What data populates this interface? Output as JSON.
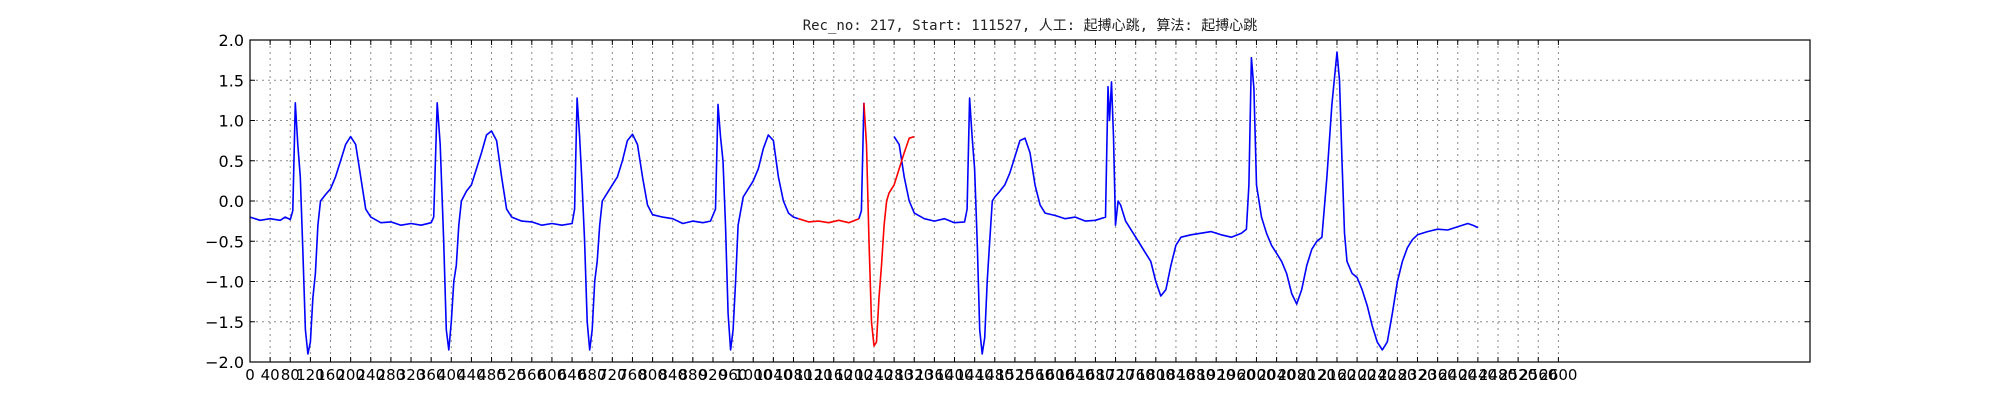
{
  "chart_data": {
    "type": "line",
    "title": "Rec_no: 217, Start: 111527, 人工: 起搏心跳, 算法: 起搏心跳",
    "xlabel": "",
    "ylabel": "",
    "xlim": [
      0,
      3100
    ],
    "ylim": [
      -2.0,
      2.0
    ],
    "grid": true,
    "legend": "none",
    "y_ticks": [
      -2.0,
      -1.5,
      -1.0,
      -0.5,
      0.0,
      0.5,
      1.0,
      1.5,
      2.0
    ],
    "y_tick_labels": [
      "−2.0",
      "−1.5",
      "−1.0",
      "−0.5",
      "0.0",
      "0.5",
      "1.0",
      "1.5",
      "2.0"
    ],
    "x_ticks": [
      0,
      40,
      80,
      120,
      160,
      200,
      240,
      280,
      320,
      360,
      400,
      440,
      480,
      520,
      560,
      600,
      640,
      680,
      720,
      760,
      800,
      840,
      880,
      920,
      960,
      1000,
      1040,
      1080,
      1120,
      1160,
      1200,
      1240,
      1280,
      1320,
      1360,
      1400,
      1440,
      1480,
      1520,
      1560,
      1600,
      1640,
      1680,
      1720,
      1760,
      1800,
      1840,
      1880,
      1920,
      1960,
      2000,
      2040,
      2080,
      2120,
      2160,
      2200,
      2240,
      2280,
      2320,
      2360,
      2400,
      2440,
      2480,
      2520,
      2560,
      2600
    ],
    "x_tick_labels": [
      "0",
      "40",
      "80",
      "120",
      "160",
      "200",
      "240",
      "280",
      "320",
      "360",
      "400",
      "440",
      "480",
      "520",
      "560",
      "600",
      "640",
      "680",
      "720",
      "760",
      "800",
      "840",
      "880",
      "920",
      "960",
      "1000",
      "1040",
      "1080",
      "1120",
      "1160",
      "1200",
      "1240",
      "1280",
      "1320",
      "1360",
      "1400",
      "1440",
      "1480",
      "1520",
      "1560",
      "1600",
      "1640",
      "1680",
      "1720",
      "1760",
      "1800",
      "1840",
      "1880",
      "1920",
      "1960",
      "2000",
      "2040",
      "2080",
      "2120",
      "2160",
      "2200",
      "2240",
      "2280",
      "2320",
      "2360",
      "2400",
      "2440",
      "2480",
      "2520",
      "2560",
      "2600"
    ],
    "series": [
      {
        "color": "#0000ff",
        "segments": [
          [
            [
              0,
              -0.2
            ],
            [
              20,
              -0.24
            ],
            [
              40,
              -0.22
            ],
            [
              60,
              -0.24
            ],
            [
              70,
              -0.2
            ],
            [
              80,
              -0.23
            ],
            [
              85,
              -0.12
            ],
            [
              90,
              1.22
            ],
            [
              95,
              0.7
            ],
            [
              100,
              0.3
            ],
            [
              105,
              -0.6
            ],
            [
              110,
              -1.6
            ],
            [
              115,
              -1.9
            ],
            [
              120,
              -1.75
            ],
            [
              125,
              -1.2
            ],
            [
              130,
              -0.9
            ],
            [
              135,
              -0.3
            ],
            [
              140,
              0.0
            ],
            [
              150,
              0.08
            ],
            [
              160,
              0.15
            ],
            [
              170,
              0.3
            ],
            [
              180,
              0.5
            ],
            [
              190,
              0.7
            ],
            [
              200,
              0.8
            ],
            [
              210,
              0.7
            ],
            [
              220,
              0.3
            ],
            [
              230,
              -0.1
            ],
            [
              240,
              -0.2
            ],
            [
              260,
              -0.27
            ],
            [
              280,
              -0.26
            ],
            [
              300,
              -0.3
            ],
            [
              320,
              -0.28
            ],
            [
              340,
              -0.3
            ],
            [
              360,
              -0.27
            ],
            [
              365,
              -0.2
            ],
            [
              372,
              1.22
            ],
            [
              378,
              0.7
            ],
            [
              385,
              -0.5
            ],
            [
              390,
              -1.6
            ],
            [
              395,
              -1.85
            ],
            [
              400,
              -1.5
            ],
            [
              405,
              -1.0
            ],
            [
              410,
              -0.8
            ],
            [
              415,
              -0.3
            ],
            [
              420,
              0.0
            ],
            [
              430,
              0.12
            ],
            [
              440,
              0.2
            ],
            [
              450,
              0.4
            ],
            [
              460,
              0.6
            ],
            [
              470,
              0.82
            ],
            [
              480,
              0.87
            ],
            [
              490,
              0.75
            ],
            [
              500,
              0.3
            ],
            [
              510,
              -0.1
            ],
            [
              520,
              -0.2
            ],
            [
              540,
              -0.25
            ],
            [
              560,
              -0.26
            ],
            [
              580,
              -0.3
            ],
            [
              600,
              -0.28
            ],
            [
              620,
              -0.3
            ],
            [
              640,
              -0.28
            ],
            [
              645,
              -0.1
            ],
            [
              650,
              1.28
            ],
            [
              655,
              0.8
            ],
            [
              660,
              0.2
            ],
            [
              665,
              -0.5
            ],
            [
              670,
              -1.5
            ],
            [
              675,
              -1.85
            ],
            [
              680,
              -1.6
            ],
            [
              685,
              -1.0
            ],
            [
              690,
              -0.75
            ],
            [
              695,
              -0.3
            ],
            [
              700,
              0.0
            ],
            [
              710,
              0.1
            ],
            [
              720,
              0.2
            ],
            [
              730,
              0.3
            ],
            [
              740,
              0.5
            ],
            [
              750,
              0.75
            ],
            [
              760,
              0.83
            ],
            [
              770,
              0.7
            ],
            [
              780,
              0.3
            ],
            [
              790,
              -0.05
            ],
            [
              800,
              -0.17
            ],
            [
              820,
              -0.2
            ],
            [
              840,
              -0.22
            ],
            [
              860,
              -0.28
            ],
            [
              880,
              -0.25
            ],
            [
              900,
              -0.27
            ],
            [
              915,
              -0.25
            ],
            [
              925,
              -0.1
            ],
            [
              930,
              1.2
            ],
            [
              935,
              0.8
            ],
            [
              940,
              0.5
            ],
            [
              945,
              -0.3
            ],
            [
              950,
              -1.4
            ],
            [
              955,
              -1.85
            ],
            [
              960,
              -1.6
            ],
            [
              965,
              -1.0
            ],
            [
              970,
              -0.3
            ],
            [
              980,
              0.05
            ],
            [
              990,
              0.15
            ],
            [
              1000,
              0.25
            ],
            [
              1010,
              0.4
            ],
            [
              1020,
              0.65
            ],
            [
              1030,
              0.82
            ],
            [
              1040,
              0.75
            ],
            [
              1050,
              0.3
            ],
            [
              1060,
              0.0
            ],
            [
              1070,
              -0.15
            ],
            [
              1080,
              -0.2
            ],
            [
              1090,
              -0.22
            ]
          ],
          [
            [
              1210,
              -0.22
            ],
            [
              1215,
              -0.12
            ],
            [
              1220,
              1.22
            ]
          ],
          [
            [
              1280,
              0.8
            ],
            [
              1290,
              0.7
            ],
            [
              1300,
              0.3
            ],
            [
              1310,
              0.0
            ],
            [
              1320,
              -0.15
            ],
            [
              1340,
              -0.22
            ],
            [
              1360,
              -0.25
            ],
            [
              1380,
              -0.22
            ],
            [
              1400,
              -0.27
            ],
            [
              1420,
              -0.26
            ],
            [
              1425,
              -0.1
            ],
            [
              1430,
              1.28
            ],
            [
              1435,
              0.8
            ],
            [
              1440,
              0.4
            ],
            [
              1445,
              -0.5
            ],
            [
              1450,
              -1.6
            ],
            [
              1455,
              -1.9
            ],
            [
              1460,
              -1.7
            ],
            [
              1465,
              -1.0
            ],
            [
              1470,
              -0.5
            ],
            [
              1475,
              0.0
            ],
            [
              1480,
              0.05
            ],
            [
              1490,
              0.12
            ],
            [
              1500,
              0.2
            ],
            [
              1510,
              0.35
            ],
            [
              1520,
              0.55
            ],
            [
              1530,
              0.75
            ],
            [
              1540,
              0.78
            ],
            [
              1550,
              0.6
            ],
            [
              1560,
              0.2
            ],
            [
              1570,
              -0.05
            ],
            [
              1580,
              -0.15
            ],
            [
              1600,
              -0.18
            ],
            [
              1620,
              -0.22
            ],
            [
              1640,
              -0.2
            ],
            [
              1660,
              -0.25
            ],
            [
              1680,
              -0.24
            ],
            [
              1700,
              -0.2
            ],
            [
              1705,
              1.42
            ],
            [
              1708,
              1.0
            ],
            [
              1712,
              1.48
            ],
            [
              1716,
              0.8
            ],
            [
              1720,
              -0.3
            ],
            [
              1725,
              0.0
            ],
            [
              1730,
              -0.05
            ],
            [
              1740,
              -0.25
            ],
            [
              1760,
              -0.45
            ],
            [
              1780,
              -0.65
            ],
            [
              1790,
              -0.75
            ],
            [
              1800,
              -1.0
            ],
            [
              1810,
              -1.18
            ],
            [
              1820,
              -1.1
            ],
            [
              1830,
              -0.8
            ],
            [
              1840,
              -0.55
            ],
            [
              1850,
              -0.45
            ],
            [
              1870,
              -0.42
            ],
            [
              1890,
              -0.4
            ],
            [
              1910,
              -0.38
            ],
            [
              1930,
              -0.42
            ],
            [
              1950,
              -0.45
            ],
            [
              1970,
              -0.4
            ],
            [
              1980,
              -0.35
            ],
            [
              1985,
              0.2
            ],
            [
              1990,
              1.78
            ],
            [
              1995,
              1.4
            ],
            [
              2000,
              0.2
            ],
            [
              2005,
              0.0
            ],
            [
              2010,
              -0.2
            ],
            [
              2020,
              -0.4
            ],
            [
              2030,
              -0.55
            ],
            [
              2040,
              -0.65
            ],
            [
              2050,
              -0.75
            ],
            [
              2060,
              -0.9
            ],
            [
              2070,
              -1.15
            ],
            [
              2080,
              -1.28
            ],
            [
              2090,
              -1.1
            ],
            [
              2100,
              -0.8
            ],
            [
              2110,
              -0.6
            ],
            [
              2120,
              -0.5
            ],
            [
              2130,
              -0.45
            ],
            [
              2140,
              0.3
            ],
            [
              2150,
              1.2
            ],
            [
              2160,
              1.85
            ],
            [
              2165,
              1.5
            ],
            [
              2170,
              0.5
            ],
            [
              2175,
              -0.4
            ],
            [
              2180,
              -0.75
            ],
            [
              2190,
              -0.9
            ],
            [
              2200,
              -0.95
            ],
            [
              2210,
              -1.1
            ],
            [
              2220,
              -1.3
            ],
            [
              2230,
              -1.55
            ],
            [
              2240,
              -1.75
            ],
            [
              2250,
              -1.85
            ],
            [
              2260,
              -1.75
            ],
            [
              2270,
              -1.4
            ],
            [
              2280,
              -1.0
            ],
            [
              2290,
              -0.75
            ],
            [
              2300,
              -0.58
            ],
            [
              2310,
              -0.48
            ],
            [
              2320,
              -0.42
            ],
            [
              2340,
              -0.38
            ],
            [
              2360,
              -0.35
            ],
            [
              2380,
              -0.36
            ],
            [
              2400,
              -0.32
            ],
            [
              2420,
              -0.28
            ],
            [
              2430,
              -0.3
            ],
            [
              2440,
              -0.33
            ]
          ]
        ]
      },
      {
        "color": "#ff0000",
        "segments": [
          [
            [
              1090,
              -0.22
            ],
            [
              1110,
              -0.26
            ],
            [
              1130,
              -0.25
            ],
            [
              1150,
              -0.27
            ],
            [
              1170,
              -0.24
            ],
            [
              1190,
              -0.27
            ],
            [
              1210,
              -0.22
            ]
          ],
          [
            [
              1220,
              1.22
            ],
            [
              1225,
              0.7
            ],
            [
              1230,
              -0.5
            ],
            [
              1235,
              -1.5
            ],
            [
              1240,
              -1.8
            ],
            [
              1245,
              -1.75
            ],
            [
              1250,
              -1.2
            ],
            [
              1255,
              -0.8
            ],
            [
              1260,
              -0.3
            ],
            [
              1265,
              0.0
            ],
            [
              1270,
              0.1
            ],
            [
              1280,
              0.2
            ],
            [
              1290,
              0.4
            ],
            [
              1300,
              0.6
            ],
            [
              1310,
              0.78
            ],
            [
              1320,
              0.8
            ]
          ]
        ]
      }
    ]
  }
}
